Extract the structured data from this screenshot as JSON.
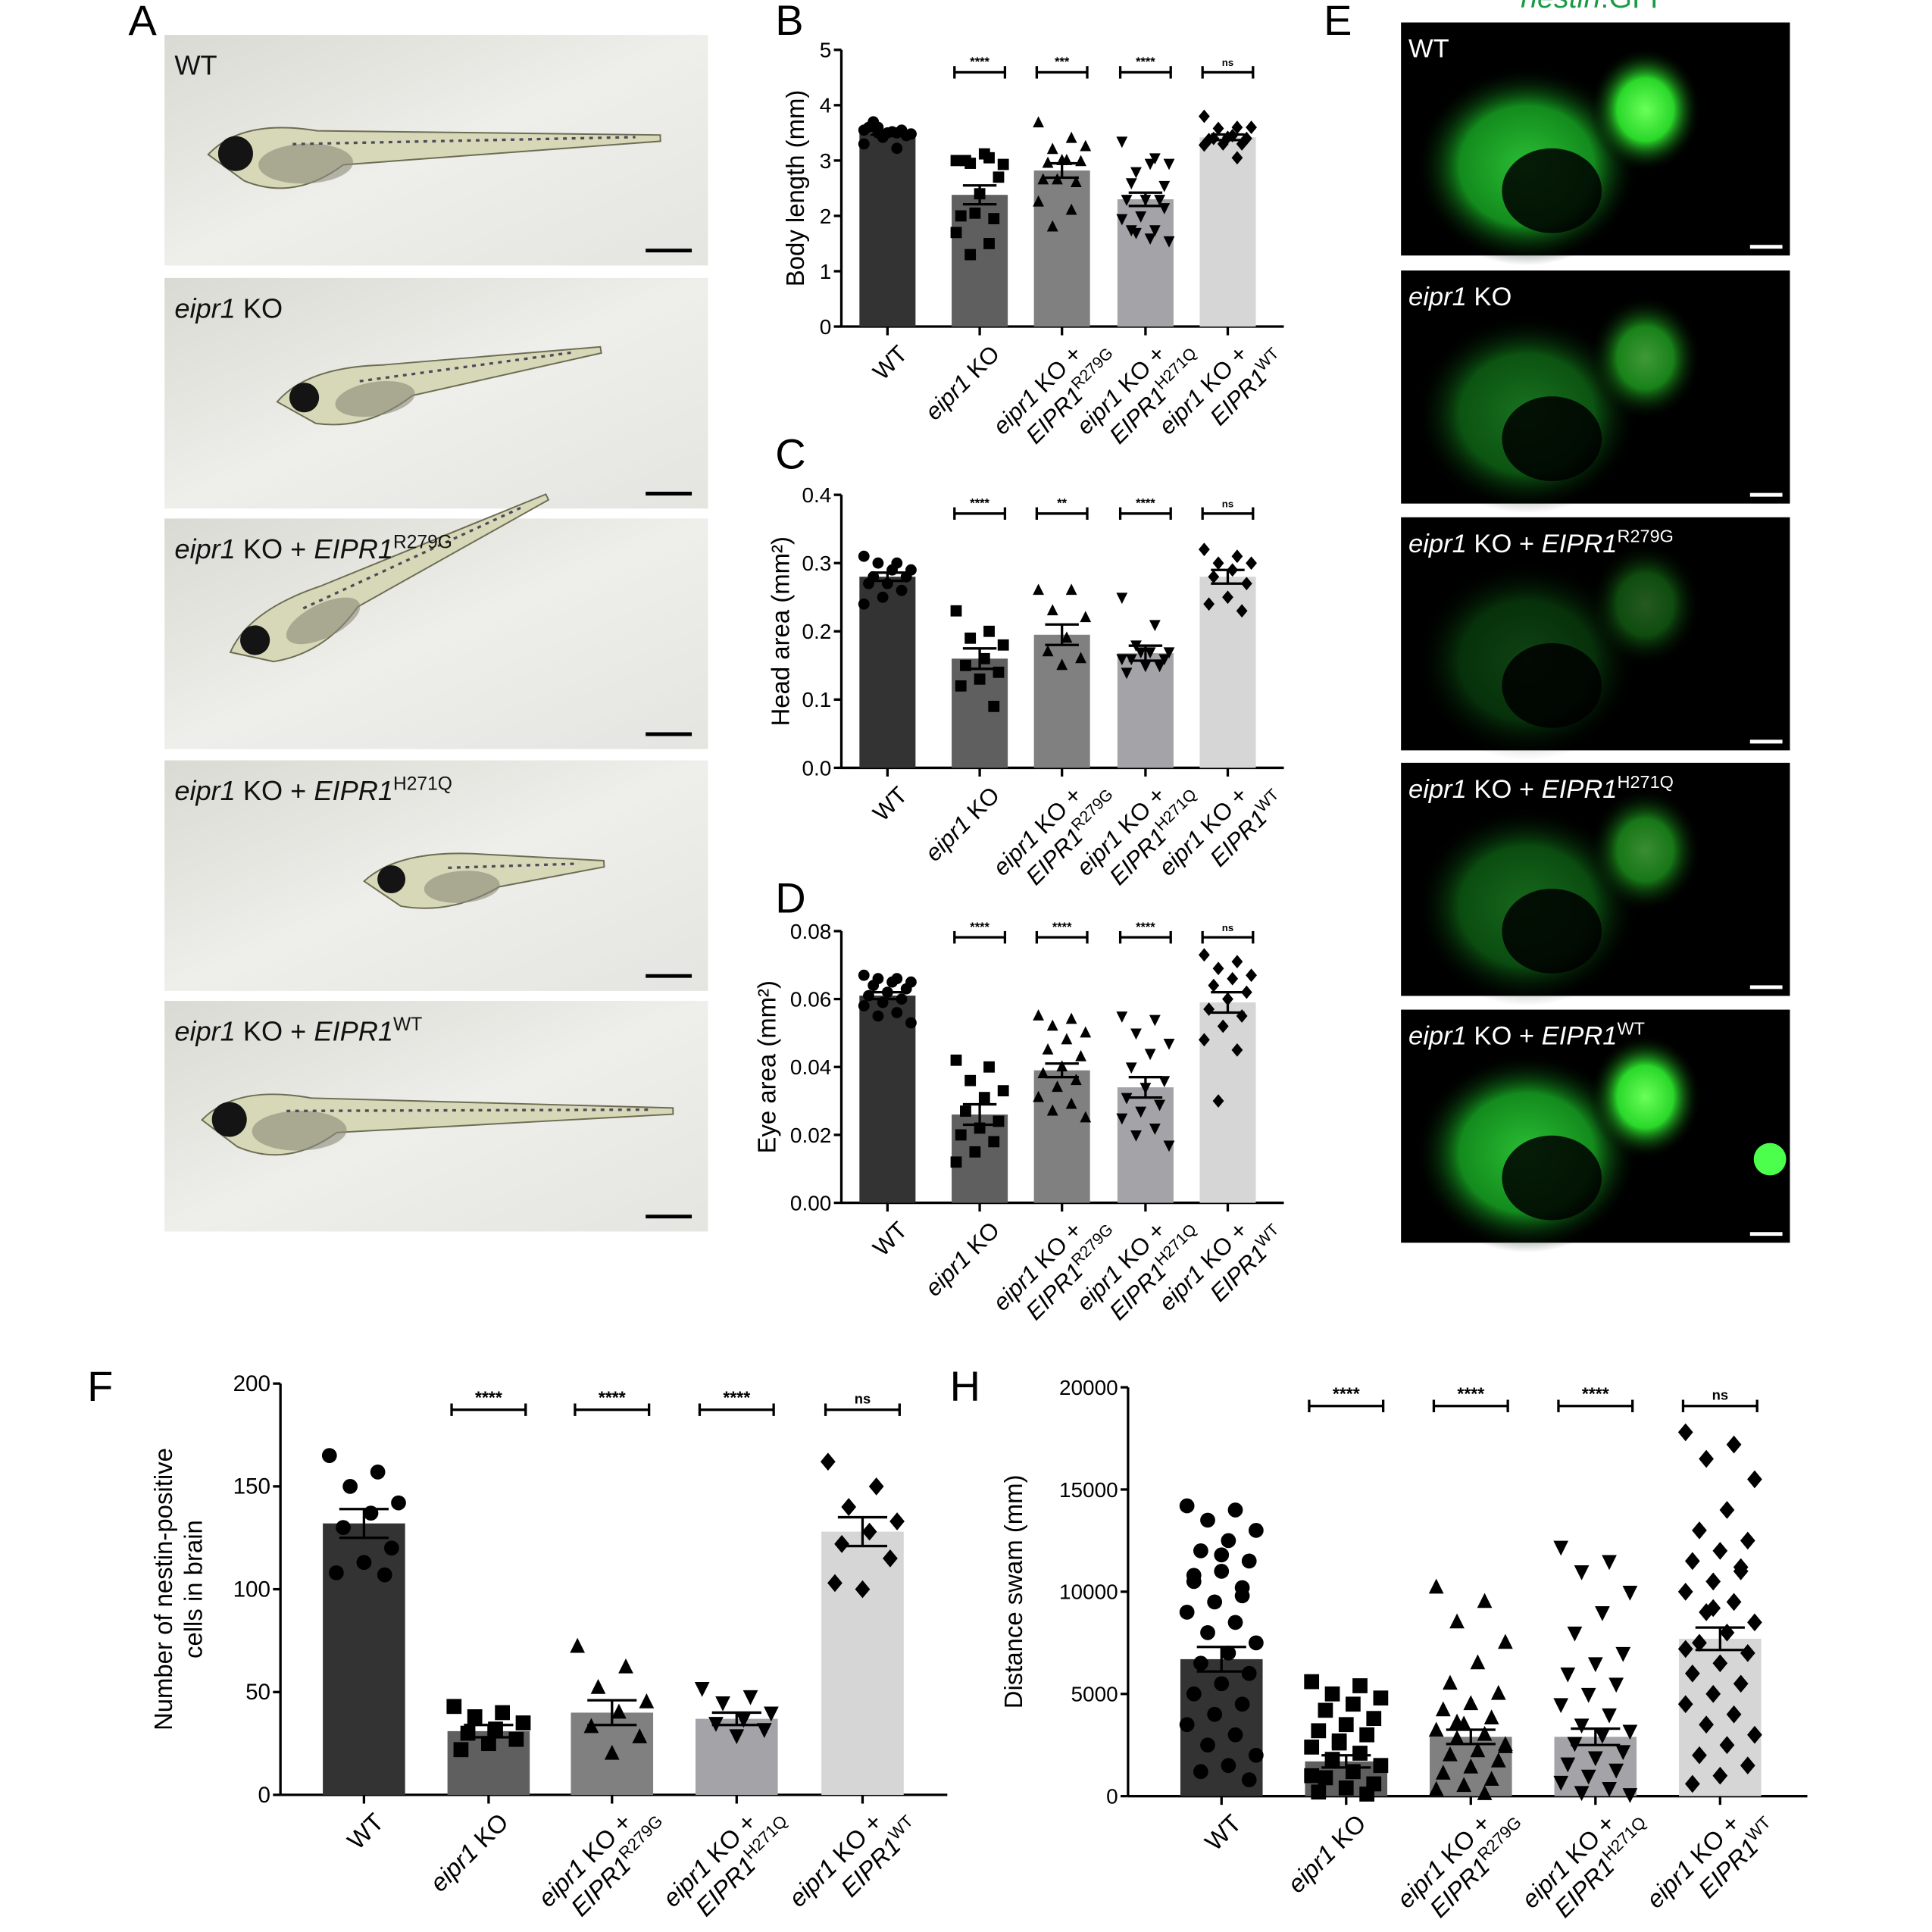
{
  "panel_labels": {
    "A": "A",
    "B": "B",
    "C": "C",
    "D": "D",
    "E": "E",
    "F": "F",
    "H": "H",
    "next": "C"
  },
  "categories": [
    {
      "italic": "",
      "text": "WT",
      "gene": "",
      "sup": ""
    },
    {
      "italic": "eipr1",
      "text": " KO",
      "gene": "",
      "sup": ""
    },
    {
      "italic": "eipr1",
      "text": " KO +",
      "gene": "EIPR1",
      "sup": "R279G"
    },
    {
      "italic": "eipr1",
      "text": " KO +",
      "gene": "EIPR1",
      "sup": "H271Q"
    },
    {
      "italic": "eipr1",
      "text": " KO +",
      "gene": "EIPR1",
      "sup": "WT"
    }
  ],
  "panel_a": {
    "images": [
      {
        "italic": "",
        "text": "WT",
        "gene": "",
        "sup": ""
      },
      {
        "italic": "eipr1",
        "text": " KO",
        "gene": "",
        "sup": ""
      },
      {
        "italic": "eipr1",
        "text": " KO + ",
        "gene": "EIPR1",
        "sup": "R279G"
      },
      {
        "italic": "eipr1",
        "text": " KO + ",
        "gene": "EIPR1",
        "sup": "H271Q"
      },
      {
        "italic": "eipr1",
        "text": " KO + ",
        "gene": "EIPR1",
        "sup": "WT"
      }
    ]
  },
  "panel_e": {
    "title_italic": "nestin",
    "title_rest": ":GFP",
    "title_color": "#1a9a45",
    "images": [
      {
        "italic": "",
        "text": "WT",
        "gene": "",
        "sup": ""
      },
      {
        "italic": "eipr1",
        "text": " KO",
        "gene": "",
        "sup": ""
      },
      {
        "italic": "eipr1",
        "text": " KO + ",
        "gene": "EIPR1",
        "sup": "R279G"
      },
      {
        "italic": "eipr1",
        "text": " KO + ",
        "gene": "EIPR1",
        "sup": "H271Q"
      },
      {
        "italic": "eipr1",
        "text": " KO + ",
        "gene": "EIPR1",
        "sup": "WT"
      }
    ]
  },
  "bar_colors": [
    "#333333",
    "#5f5f5f",
    "#808080",
    "#a3a3a8",
    "#d6d6d6"
  ],
  "chart_data": [
    {
      "panel": "B",
      "type": "bar",
      "ylabel": "Body length (mm)",
      "ylim": [
        0,
        5
      ],
      "yticks": [
        "0",
        "1",
        "2",
        "3",
        "4",
        "5"
      ],
      "significance": [
        "****",
        "***",
        "****",
        "ns"
      ],
      "means": [
        3.5,
        2.38,
        2.82,
        2.3,
        3.42
      ],
      "sem": [
        0.03,
        0.17,
        0.13,
        0.12,
        0.05
      ],
      "points": [
        [
          3.55,
          3.5,
          3.6,
          3.48,
          3.52,
          3.7,
          3.45,
          3.5,
          3.6,
          3.55,
          3.42,
          3.3,
          3.22,
          3.5,
          3.48
        ],
        [
          3.0,
          3.05,
          2.95,
          2.93,
          3.12,
          3.0,
          2.7,
          2.4,
          2.0,
          1.95,
          2.05,
          1.7,
          1.5,
          1.3
        ],
        [
          3.68,
          3.4,
          3.2,
          3.25,
          3.0,
          2.95,
          2.98,
          3.0,
          2.65,
          2.6,
          2.65,
          2.25,
          2.1,
          1.8
        ],
        [
          3.35,
          3.05,
          2.8,
          2.95,
          2.95,
          2.6,
          2.55,
          2.3,
          2.3,
          2.3,
          2.0,
          1.95,
          1.75,
          1.7,
          1.55,
          1.6,
          1.75,
          2.15
        ],
        [
          3.8,
          3.6,
          3.58,
          3.6,
          3.45,
          3.4,
          3.4,
          3.42,
          3.38,
          3.3,
          3.3,
          3.28,
          3.05
        ]
      ]
    },
    {
      "panel": "C",
      "type": "bar",
      "ylabel": "Head area (mm²)",
      "ylim": [
        0,
        0.4
      ],
      "yticks": [
        "0.0",
        "0.1",
        "0.2",
        "0.3",
        "0.4"
      ],
      "significance": [
        "****",
        "**",
        "****",
        "ns"
      ],
      "means": [
        0.28,
        0.16,
        0.195,
        0.168,
        0.28
      ],
      "sem": [
        0.006,
        0.015,
        0.015,
        0.011,
        0.01
      ],
      "points": [
        [
          0.31,
          0.3,
          0.3,
          0.29,
          0.29,
          0.28,
          0.28,
          0.27,
          0.27,
          0.26,
          0.25,
          0.24
        ],
        [
          0.23,
          0.2,
          0.19,
          0.18,
          0.16,
          0.15,
          0.14,
          0.13,
          0.12,
          0.09
        ],
        [
          0.26,
          0.26,
          0.23,
          0.22,
          0.19,
          0.17,
          0.16,
          0.15
        ],
        [
          0.25,
          0.21,
          0.18,
          0.17,
          0.17,
          0.16,
          0.16,
          0.15,
          0.14,
          0.15,
          0.17,
          0.16
        ],
        [
          0.32,
          0.31,
          0.3,
          0.3,
          0.29,
          0.28,
          0.27,
          0.25,
          0.24,
          0.23
        ]
      ]
    },
    {
      "panel": "D",
      "type": "bar",
      "ylabel": "Eye area (mm²)",
      "ylim": [
        0,
        0.08
      ],
      "yticks": [
        "0.00",
        "0.02",
        "0.04",
        "0.06",
        "0.08"
      ],
      "significance": [
        "****",
        "****",
        "****",
        "ns"
      ],
      "means": [
        0.061,
        0.026,
        0.039,
        0.034,
        0.059
      ],
      "sem": [
        0.001,
        0.003,
        0.002,
        0.003,
        0.003
      ],
      "points": [
        [
          0.067,
          0.066,
          0.066,
          0.065,
          0.065,
          0.064,
          0.063,
          0.062,
          0.061,
          0.06,
          0.059,
          0.058,
          0.056,
          0.055,
          0.053
        ],
        [
          0.042,
          0.04,
          0.036,
          0.033,
          0.031,
          0.027,
          0.024,
          0.022,
          0.02,
          0.018,
          0.015,
          0.012
        ],
        [
          0.055,
          0.054,
          0.052,
          0.05,
          0.048,
          0.045,
          0.043,
          0.04,
          0.038,
          0.036,
          0.034,
          0.031,
          0.029,
          0.027,
          0.025
        ],
        [
          0.055,
          0.054,
          0.05,
          0.047,
          0.044,
          0.04,
          0.036,
          0.034,
          0.031,
          0.029,
          0.027,
          0.025,
          0.022,
          0.02,
          0.017
        ],
        [
          0.073,
          0.071,
          0.069,
          0.067,
          0.066,
          0.064,
          0.062,
          0.06,
          0.057,
          0.055,
          0.052,
          0.048,
          0.045,
          0.03
        ]
      ]
    },
    {
      "panel": "F",
      "type": "bar",
      "ylabel": [
        "Number of nestin-positive",
        "cells in brain"
      ],
      "ylim": [
        0,
        200
      ],
      "yticks": [
        "0",
        "50",
        "100",
        "150",
        "200"
      ],
      "significance": [
        "****",
        "****",
        "****",
        "ns"
      ],
      "means": [
        132,
        31,
        40,
        37,
        128
      ],
      "sem": [
        7,
        3,
        6,
        3,
        7
      ],
      "points": [
        [
          165,
          157,
          150,
          142,
          137,
          130,
          120,
          113,
          108,
          107
        ],
        [
          43,
          40,
          38,
          35,
          32,
          30,
          27,
          25,
          22
        ],
        [
          72,
          62,
          52,
          45,
          40,
          33,
          28,
          20
        ],
        [
          52,
          48,
          45,
          40,
          37,
          35,
          32,
          29
        ],
        [
          162,
          150,
          140,
          133,
          128,
          122,
          115,
          100,
          103
        ]
      ]
    },
    {
      "panel": "H",
      "type": "bar",
      "ylabel": "Distance swam (mm)",
      "ylim": [
        0,
        20000
      ],
      "yticks": [
        "0",
        "5000",
        "10000",
        "15000",
        "20000"
      ],
      "significance": [
        "****",
        "****",
        "****",
        "ns"
      ],
      "means": [
        6700,
        1700,
        2900,
        2900,
        7700
      ],
      "sem": [
        600,
        300,
        350,
        400,
        550
      ],
      "points": [
        [
          14200,
          14000,
          13500,
          13000,
          12500,
          12000,
          11500,
          11000,
          10500,
          10200,
          9500,
          9000,
          8500,
          8000,
          7500,
          7000,
          6500,
          6000,
          5500,
          5000,
          4500,
          4000,
          3500,
          3000,
          2500,
          2000,
          1500,
          1200,
          800,
          11800,
          10800,
          9800
        ],
        [
          5600,
          5400,
          5000,
          4800,
          4500,
          4200,
          3800,
          3500,
          3200,
          3000,
          2700,
          2400,
          2100,
          1800,
          1500,
          1200,
          900,
          600,
          400,
          200,
          100,
          2600,
          1000
        ],
        [
          10200,
          9500,
          8500,
          7500,
          6500,
          5500,
          5000,
          4500,
          4200,
          3800,
          3500,
          3200,
          3000,
          2800,
          2500,
          2200,
          2000,
          1700,
          1400,
          1100,
          800,
          500,
          300,
          100,
          3600,
          2400
        ],
        [
          12200,
          11500,
          11000,
          10000,
          9000,
          8000,
          7000,
          6500,
          6000,
          5500,
          5000,
          4500,
          4000,
          3500,
          3200,
          3000,
          2600,
          2200,
          1900,
          1600,
          1300,
          1000,
          700,
          400,
          200,
          100
        ],
        [
          17800,
          17200,
          16500,
          15500,
          14000,
          13000,
          12500,
          12000,
          11500,
          11000,
          10500,
          10000,
          9500,
          9000,
          8500,
          8000,
          7500,
          7000,
          6500,
          6000,
          5500,
          5000,
          4500,
          4000,
          3500,
          3000,
          2500,
          2000,
          1500,
          1000,
          600,
          11200,
          9200,
          7200
        ]
      ]
    }
  ]
}
